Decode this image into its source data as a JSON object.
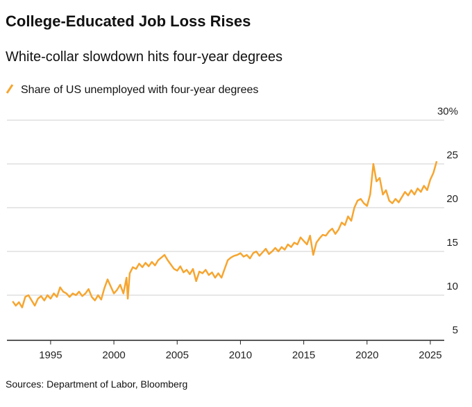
{
  "chart_data": {
    "type": "line",
    "title": "College-Educated Job Loss Rises",
    "subtitle": "White-collar slowdown hits four-year degrees",
    "source": "Sources: Department of Labor, Bloomberg",
    "xlim": [
      1991.55,
      2026.1
    ],
    "xticks": [
      1995,
      2000,
      2005,
      2010,
      2015,
      2020,
      2025
    ],
    "ylim": [
      5,
      30
    ],
    "yticks": [
      5,
      10,
      15,
      20,
      25,
      {
        "value": 30,
        "label": "30%"
      }
    ],
    "grid": true,
    "x": [
      1992.0,
      1992.25,
      1992.5,
      1992.75,
      1993.0,
      1993.25,
      1993.5,
      1993.75,
      1994.0,
      1994.25,
      1994.5,
      1994.75,
      1995.0,
      1995.25,
      1995.5,
      1995.75,
      1996.0,
      1996.25,
      1996.5,
      1996.75,
      1997.0,
      1997.25,
      1997.5,
      1997.75,
      1998.0,
      1998.25,
      1998.5,
      1998.75,
      1999.0,
      1999.25,
      1999.5,
      1999.75,
      2000.0,
      2000.25,
      2000.5,
      2000.75,
      2001.0,
      2001.1,
      2001.25,
      2001.5,
      2001.75,
      2002.0,
      2002.25,
      2002.5,
      2002.75,
      2003.0,
      2003.25,
      2003.5,
      2003.75,
      2004.0,
      2004.25,
      2004.5,
      2004.75,
      2005.0,
      2005.25,
      2005.5,
      2005.75,
      2006.0,
      2006.25,
      2006.5,
      2006.75,
      2007.0,
      2007.25,
      2007.5,
      2007.75,
      2008.0,
      2008.25,
      2008.5,
      2008.75,
      2009.0,
      2009.25,
      2009.5,
      2009.75,
      2010.0,
      2010.25,
      2010.5,
      2010.75,
      2011.0,
      2011.25,
      2011.5,
      2011.75,
      2012.0,
      2012.25,
      2012.5,
      2012.75,
      2013.0,
      2013.25,
      2013.5,
      2013.75,
      2014.0,
      2014.25,
      2014.5,
      2014.75,
      2015.0,
      2015.25,
      2015.5,
      2015.75,
      2016.0,
      2016.25,
      2016.5,
      2016.75,
      2017.0,
      2017.25,
      2017.5,
      2017.75,
      2018.0,
      2018.25,
      2018.5,
      2018.75,
      2019.0,
      2019.25,
      2019.5,
      2019.75,
      2020.0,
      2020.25,
      2020.5,
      2020.75,
      2021.0,
      2021.25,
      2021.5,
      2021.75,
      2022.0,
      2022.25,
      2022.5,
      2022.75,
      2023.0,
      2023.25,
      2023.5,
      2023.75,
      2024.0,
      2024.25,
      2024.5,
      2024.75,
      2025.0,
      2025.25,
      2025.5
    ],
    "series": [
      {
        "name": "Share of US unemployed with four-year degrees",
        "color": "#f6a530",
        "values": [
          9.3,
          8.8,
          9.2,
          8.6,
          9.8,
          10.0,
          9.4,
          8.8,
          9.6,
          9.9,
          9.4,
          10.0,
          9.6,
          10.2,
          9.8,
          10.9,
          10.4,
          10.2,
          9.8,
          10.2,
          10.0,
          10.4,
          9.9,
          10.2,
          10.7,
          9.8,
          9.4,
          10.0,
          9.5,
          10.8,
          11.8,
          11.0,
          10.2,
          10.6,
          11.2,
          10.2,
          12.0,
          9.6,
          12.5,
          13.2,
          13.0,
          13.6,
          13.2,
          13.7,
          13.3,
          13.8,
          13.4,
          14.0,
          14.3,
          14.6,
          14.0,
          13.5,
          13.0,
          12.8,
          13.3,
          12.6,
          12.9,
          12.4,
          13.0,
          11.6,
          12.7,
          12.5,
          12.9,
          12.3,
          12.6,
          12.0,
          12.5,
          12.0,
          13.0,
          14.0,
          14.3,
          14.5,
          14.6,
          14.8,
          14.4,
          14.6,
          14.2,
          14.8,
          15.0,
          14.5,
          14.9,
          15.3,
          14.7,
          15.0,
          15.4,
          15.0,
          15.5,
          15.2,
          15.8,
          15.5,
          16.0,
          15.8,
          16.6,
          16.2,
          15.8,
          16.8,
          14.6,
          16.0,
          16.5,
          16.9,
          16.8,
          17.3,
          17.6,
          17.0,
          17.5,
          18.3,
          18.0,
          19.0,
          18.5,
          20.0,
          20.8,
          21.0,
          20.5,
          20.2,
          21.5,
          25.0,
          23.0,
          23.4,
          21.5,
          22.0,
          20.8,
          20.5,
          21.0,
          20.6,
          21.2,
          21.8,
          21.4,
          22.0,
          21.5,
          22.2,
          21.8,
          22.5,
          22.0,
          23.2,
          24.0,
          25.3
        ]
      }
    ]
  }
}
